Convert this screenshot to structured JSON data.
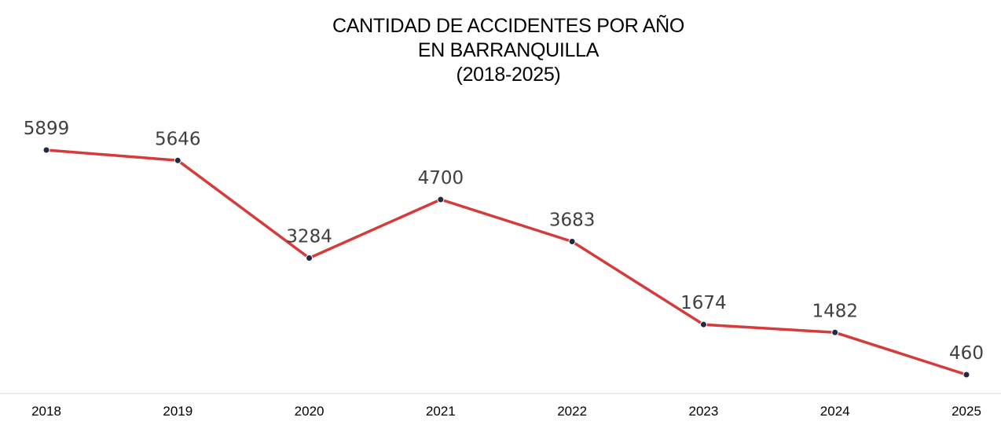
{
  "title": {
    "line1": "CANTIDAD DE ACCIDENTES POR AÑO",
    "line2": "EN BARRANQUILLA",
    "line3": "(2018-2025)"
  },
  "colors": {
    "line": "#d63b3b",
    "marker": "#1f2a44",
    "marker_stroke": "#ffffff",
    "axis": "#d9d9d9",
    "data_label": "#404040",
    "tick_label": "#000000"
  },
  "chart_data": {
    "type": "line",
    "title": "CANTIDAD DE ACCIDENTES POR AÑO EN BARRANQUILLA (2018-2025)",
    "xlabel": "",
    "ylabel": "",
    "categories": [
      "2018",
      "2019",
      "2020",
      "2021",
      "2022",
      "2023",
      "2024",
      "2025"
    ],
    "series": [
      {
        "values": [
          5899,
          5646,
          3284,
          4700,
          3683,
          1674,
          1482,
          460
        ]
      }
    ],
    "ylim": [
      0,
      5899
    ],
    "grid": false,
    "legend": "none",
    "data_labels": true
  }
}
